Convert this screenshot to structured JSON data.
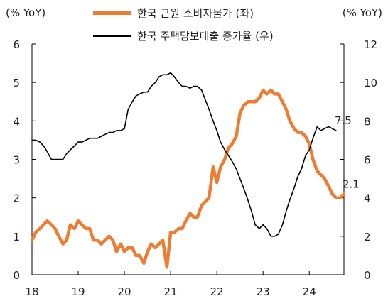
{
  "chart_data": {
    "type": "line",
    "left_axis_title": "(% YoY)",
    "right_axis_title": "(% YoY)",
    "left_ylim": [
      0,
      6
    ],
    "right_ylim": [
      0,
      12
    ],
    "left_ticks": [
      "0",
      "1",
      "2",
      "3",
      "4",
      "5",
      "6"
    ],
    "right_ticks": [
      "0",
      "2",
      "4",
      "6",
      "8",
      "10",
      "12"
    ],
    "x_ticks": [
      "18",
      "19",
      "20",
      "21",
      "22",
      "23",
      "24"
    ],
    "legend": "top-center",
    "grid": false,
    "series": [
      {
        "name": "한국 근원 소비자물가 (좌)",
        "axis": "left",
        "color": "#ED7D31",
        "end_label": "2.1",
        "points": [
          [
            18.0,
            0.9
          ],
          [
            18.08,
            1.1
          ],
          [
            18.17,
            1.2
          ],
          [
            18.25,
            1.3
          ],
          [
            18.33,
            1.4
          ],
          [
            18.42,
            1.3
          ],
          [
            18.5,
            1.2
          ],
          [
            18.58,
            1.0
          ],
          [
            18.67,
            0.8
          ],
          [
            18.75,
            0.9
          ],
          [
            18.83,
            1.3
          ],
          [
            18.92,
            1.2
          ],
          [
            19.0,
            1.4
          ],
          [
            19.08,
            1.3
          ],
          [
            19.17,
            1.2
          ],
          [
            19.25,
            1.2
          ],
          [
            19.33,
            0.9
          ],
          [
            19.42,
            0.9
          ],
          [
            19.5,
            0.8
          ],
          [
            19.58,
            0.9
          ],
          [
            19.67,
            1.0
          ],
          [
            19.75,
            0.9
          ],
          [
            19.83,
            0.6
          ],
          [
            19.92,
            0.8
          ],
          [
            20.0,
            0.6
          ],
          [
            20.08,
            0.7
          ],
          [
            20.17,
            0.7
          ],
          [
            20.25,
            0.5
          ],
          [
            20.33,
            0.5
          ],
          [
            20.42,
            0.3
          ],
          [
            20.5,
            0.6
          ],
          [
            20.58,
            0.8
          ],
          [
            20.67,
            0.7
          ],
          [
            20.75,
            0.8
          ],
          [
            20.83,
            0.9
          ],
          [
            20.92,
            0.2
          ],
          [
            21.0,
            1.1
          ],
          [
            21.08,
            1.1
          ],
          [
            21.17,
            1.2
          ],
          [
            21.25,
            1.2
          ],
          [
            21.33,
            1.4
          ],
          [
            21.42,
            1.6
          ],
          [
            21.5,
            1.5
          ],
          [
            21.58,
            1.5
          ],
          [
            21.67,
            1.8
          ],
          [
            21.75,
            1.9
          ],
          [
            21.83,
            2.0
          ],
          [
            21.92,
            2.8
          ],
          [
            22.0,
            2.4
          ],
          [
            22.08,
            2.8
          ],
          [
            22.17,
            3.0
          ],
          [
            22.25,
            3.3
          ],
          [
            22.33,
            3.4
          ],
          [
            22.42,
            3.6
          ],
          [
            22.5,
            4.2
          ],
          [
            22.58,
            4.4
          ],
          [
            22.67,
            4.5
          ],
          [
            22.75,
            4.5
          ],
          [
            22.83,
            4.5
          ],
          [
            22.92,
            4.6
          ],
          [
            23.0,
            4.8
          ],
          [
            23.08,
            4.7
          ],
          [
            23.17,
            4.8
          ],
          [
            23.25,
            4.7
          ],
          [
            23.33,
            4.7
          ],
          [
            23.42,
            4.5
          ],
          [
            23.5,
            4.3
          ],
          [
            23.58,
            4.0
          ],
          [
            23.67,
            3.8
          ],
          [
            23.75,
            3.7
          ],
          [
            23.83,
            3.7
          ],
          [
            23.92,
            3.6
          ],
          [
            24.0,
            3.4
          ],
          [
            24.08,
            3.0
          ],
          [
            24.17,
            2.7
          ],
          [
            24.25,
            2.6
          ],
          [
            24.33,
            2.5
          ],
          [
            24.42,
            2.3
          ],
          [
            24.5,
            2.1
          ],
          [
            24.58,
            2.0
          ],
          [
            24.67,
            2.0
          ],
          [
            24.75,
            2.1
          ]
        ]
      },
      {
        "name": "한국 주택담보대출 증가율 (우)",
        "axis": "right",
        "color": "#000000",
        "end_label": "7.5",
        "points": [
          [
            18.0,
            7.0
          ],
          [
            18.08,
            7.0
          ],
          [
            18.17,
            6.9
          ],
          [
            18.25,
            6.7
          ],
          [
            18.33,
            6.4
          ],
          [
            18.42,
            6.0
          ],
          [
            18.5,
            6.0
          ],
          [
            18.58,
            6.0
          ],
          [
            18.67,
            6.0
          ],
          [
            18.75,
            6.3
          ],
          [
            18.83,
            6.5
          ],
          [
            18.92,
            6.7
          ],
          [
            19.0,
            6.9
          ],
          [
            19.08,
            6.9
          ],
          [
            19.17,
            7.0
          ],
          [
            19.25,
            7.1
          ],
          [
            19.33,
            7.1
          ],
          [
            19.42,
            7.1
          ],
          [
            19.5,
            7.2
          ],
          [
            19.58,
            7.3
          ],
          [
            19.67,
            7.4
          ],
          [
            19.75,
            7.4
          ],
          [
            19.83,
            7.5
          ],
          [
            19.92,
            7.5
          ],
          [
            20.0,
            7.6
          ],
          [
            20.08,
            8.6
          ],
          [
            20.17,
            9.0
          ],
          [
            20.25,
            9.3
          ],
          [
            20.33,
            9.4
          ],
          [
            20.42,
            9.5
          ],
          [
            20.5,
            9.5
          ],
          [
            20.58,
            9.8
          ],
          [
            20.67,
            10.0
          ],
          [
            20.75,
            10.3
          ],
          [
            20.83,
            10.4
          ],
          [
            20.92,
            10.4
          ],
          [
            21.0,
            10.5
          ],
          [
            21.08,
            10.3
          ],
          [
            21.17,
            10.0
          ],
          [
            21.25,
            9.8
          ],
          [
            21.33,
            9.8
          ],
          [
            21.42,
            9.7
          ],
          [
            21.5,
            9.8
          ],
          [
            21.58,
            9.8
          ],
          [
            21.67,
            9.6
          ],
          [
            21.75,
            9.1
          ],
          [
            21.83,
            8.6
          ],
          [
            21.92,
            8.0
          ],
          [
            22.0,
            7.5
          ],
          [
            22.08,
            6.9
          ],
          [
            22.17,
            6.5
          ],
          [
            22.25,
            6.2
          ],
          [
            22.33,
            5.9
          ],
          [
            22.42,
            5.5
          ],
          [
            22.5,
            5.0
          ],
          [
            22.58,
            4.5
          ],
          [
            22.67,
            3.9
          ],
          [
            22.75,
            3.3
          ],
          [
            22.83,
            2.6
          ],
          [
            22.92,
            2.4
          ],
          [
            23.0,
            2.6
          ],
          [
            23.08,
            2.4
          ],
          [
            23.17,
            2.0
          ],
          [
            23.25,
            2.0
          ],
          [
            23.33,
            2.1
          ],
          [
            23.42,
            2.6
          ],
          [
            23.5,
            3.3
          ],
          [
            23.58,
            3.9
          ],
          [
            23.67,
            4.5
          ],
          [
            23.75,
            5.1
          ],
          [
            23.83,
            5.5
          ],
          [
            23.92,
            6.2
          ],
          [
            24.0,
            6.5
          ],
          [
            24.08,
            7.1
          ],
          [
            24.17,
            7.7
          ],
          [
            24.25,
            7.5
          ],
          [
            24.33,
            7.6
          ],
          [
            24.42,
            7.7
          ],
          [
            24.5,
            7.6
          ],
          [
            24.58,
            7.5
          ]
        ]
      }
    ]
  }
}
